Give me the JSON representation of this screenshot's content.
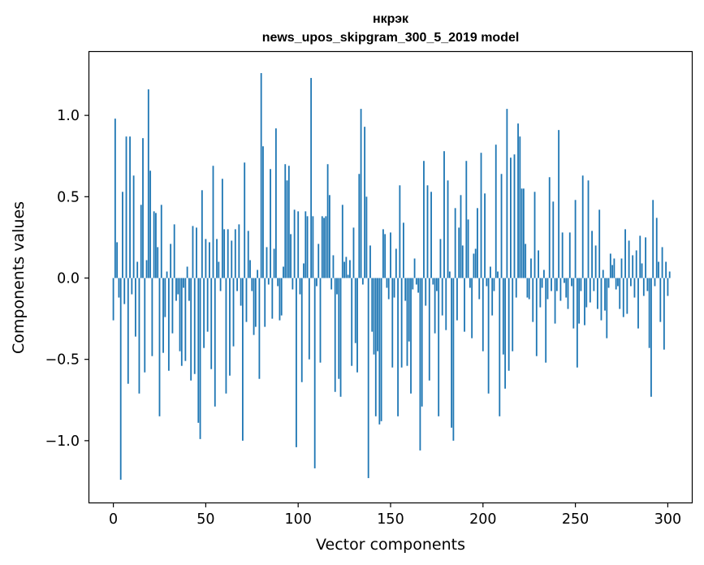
{
  "chart_data": {
    "type": "bar",
    "title": "нкрэк",
    "subtitle": "news_upos_skipgram_300_5_2019 model",
    "xlabel": "Vector components",
    "ylabel": "Components values",
    "xlim": [
      -13,
      313
    ],
    "ylim": [
      -1.38,
      1.39
    ],
    "xticks": [
      0,
      50,
      100,
      150,
      200,
      250,
      300
    ],
    "xtick_labels": [
      "0",
      "50",
      "100",
      "150",
      "200",
      "250",
      "300"
    ],
    "yticks": [
      -1.0,
      -0.5,
      0.0,
      0.5,
      1.0
    ],
    "ytick_labels": [
      "−1.0",
      "−0.5",
      "0.0",
      "0.5",
      "1.0"
    ],
    "grid": false,
    "bar_color": "#1f77b4",
    "bar_width": 0.8,
    "values": [
      -0.26,
      0.98,
      0.22,
      -0.12,
      -1.24,
      0.53,
      -0.16,
      0.87,
      -0.65,
      0.87,
      -0.1,
      0.63,
      -0.36,
      0.1,
      -0.71,
      0.45,
      0.86,
      -0.58,
      0.11,
      1.16,
      0.66,
      -0.48,
      0.41,
      0.4,
      0.19,
      -0.85,
      0.45,
      -0.46,
      -0.24,
      0.04,
      -0.57,
      0.21,
      -0.34,
      0.33,
      -0.14,
      -0.1,
      -0.45,
      -0.54,
      -0.06,
      -0.51,
      0.07,
      -0.14,
      -0.63,
      0.32,
      -0.59,
      0.31,
      -0.89,
      -0.99,
      0.54,
      -0.43,
      0.24,
      -0.33,
      0.22,
      -0.56,
      0.69,
      -0.79,
      0.24,
      0.1,
      -0.08,
      0.61,
      0.3,
      -0.71,
      0.3,
      -0.6,
      0.23,
      -0.42,
      0.3,
      -0.08,
      0.33,
      -0.17,
      -1.0,
      0.71,
      -0.27,
      0.29,
      0.11,
      -0.08,
      -0.35,
      -0.3,
      0.05,
      -0.62,
      1.26,
      0.81,
      -0.3,
      0.19,
      -0.04,
      0.67,
      -0.25,
      0.18,
      0.92,
      -0.05,
      -0.26,
      -0.23,
      0.07,
      0.7,
      0.6,
      0.69,
      0.27,
      -0.07,
      0.42,
      -1.04,
      0.41,
      -0.1,
      -0.64,
      0.09,
      0.41,
      0.38,
      -0.5,
      1.23,
      0.38,
      -1.17,
      -0.05,
      0.21,
      -0.52,
      0.38,
      0.37,
      0.38,
      0.7,
      0.51,
      -0.07,
      0.14,
      -0.7,
      -0.1,
      -0.62,
      -0.73,
      0.45,
      0.1,
      0.13,
      0.02,
      0.11,
      -0.54,
      0.31,
      -0.4,
      -0.58,
      0.64,
      1.04,
      -0.04,
      0.93,
      0.5,
      -1.23,
      0.2,
      -0.33,
      -0.47,
      -0.85,
      -0.45,
      -0.9,
      -0.88,
      0.3,
      0.27,
      -0.06,
      -0.13,
      0.28,
      -0.55,
      -0.12,
      0.18,
      -0.85,
      0.57,
      -0.55,
      0.34,
      -0.14,
      -0.54,
      -0.39,
      -0.71,
      -0.07,
      0.12,
      -0.04,
      -0.09,
      -1.06,
      -0.79,
      0.72,
      -0.17,
      0.57,
      -0.63,
      0.53,
      -0.04,
      -0.34,
      -0.08,
      -0.85,
      0.24,
      -0.23,
      0.78,
      -0.32,
      0.6,
      0.04,
      -0.92,
      -1.0,
      0.43,
      -0.26,
      0.31,
      0.51,
      0.2,
      -0.33,
      0.72,
      0.36,
      -0.06,
      -0.37,
      0.15,
      0.18,
      0.43,
      -0.13,
      0.77,
      -0.45,
      0.52,
      -0.05,
      -0.71,
      0.07,
      -0.23,
      -0.08,
      0.82,
      0.04,
      -0.85,
      0.64,
      -0.47,
      -0.68,
      1.04,
      -0.57,
      0.74,
      -0.45,
      0.76,
      -0.12,
      0.95,
      0.87,
      0.55,
      0.55,
      0.21,
      -0.12,
      -0.13,
      0.12,
      -0.27,
      0.53,
      -0.48,
      0.17,
      -0.18,
      -0.06,
      0.05,
      -0.52,
      -0.13,
      0.62,
      -0.08,
      0.47,
      -0.28,
      -0.08,
      0.91,
      -0.14,
      0.28,
      -0.03,
      -0.12,
      -0.19,
      0.28,
      -0.05,
      -0.31,
      0.48,
      -0.55,
      -0.28,
      -0.08,
      0.63,
      -0.29,
      -0.18,
      0.6,
      -0.15,
      0.29,
      -0.08,
      0.2,
      -0.19,
      0.42,
      -0.26,
      0.05,
      -0.2,
      -0.37,
      -0.06,
      0.15,
      0.08,
      0.12,
      -0.07,
      -0.05,
      -0.19,
      0.12,
      -0.24,
      0.3,
      -0.22,
      0.23,
      -0.05,
      0.14,
      -0.12,
      0.17,
      -0.31,
      0.26,
      0.09,
      -0.11,
      0.25,
      -0.08,
      -0.43,
      -0.73,
      0.48,
      -0.05,
      0.37,
      0.1,
      -0.27,
      0.19,
      -0.44,
      0.1,
      -0.11,
      0.04
    ]
  }
}
